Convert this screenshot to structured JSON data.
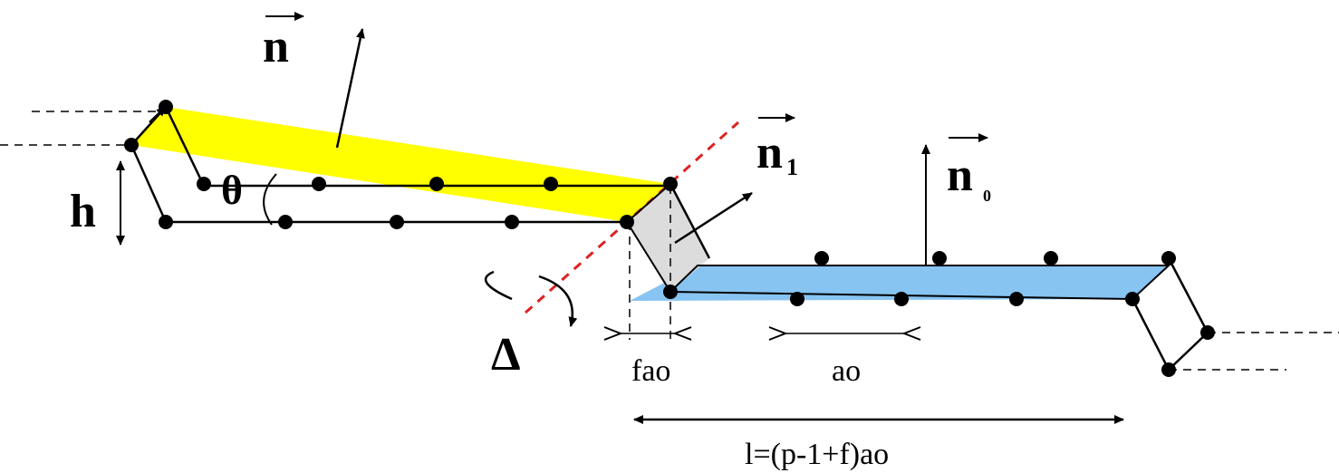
{
  "labels": {
    "normal": "n",
    "normal_1": {
      "base": "n",
      "sub": "1"
    },
    "normal_0": {
      "base": "n",
      "sub": "0"
    },
    "height": "h",
    "angle": "θ",
    "axis": "Δ",
    "offset": "fao",
    "spacing": "ao",
    "length": "l=(p-1+f)ao"
  }
}
